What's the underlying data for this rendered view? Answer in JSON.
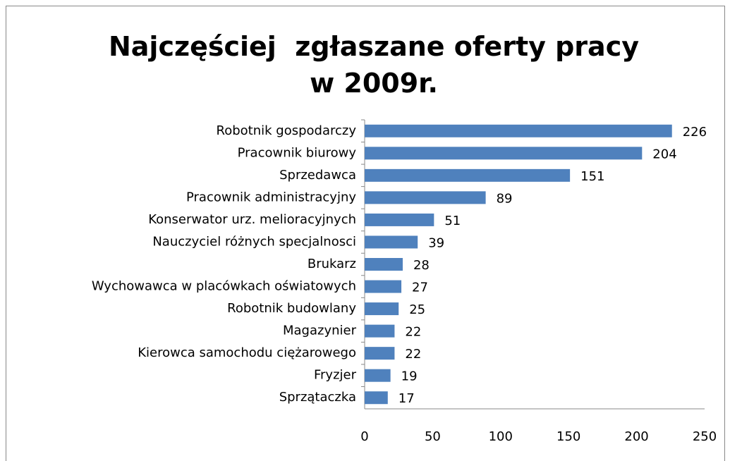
{
  "chart_data": {
    "type": "bar",
    "orientation": "horizontal",
    "title": "Najczęściej  zgłaszane oferty pracy w 2009r.",
    "categories": [
      "Robotnik gospodarczy",
      "Pracownik biurowy",
      "Sprzedawca",
      "Pracownik administracyjny",
      "Konserwator urz. melioracyjnych",
      "Nauczyciel różnych specjalnosci",
      "Brukarz",
      "Wychowawca w placówkach oświatowych",
      "Robotnik budowlany",
      "Magazynier",
      "Kierowca samochodu ciężarowego",
      "Fryzjer",
      "Sprzątaczka"
    ],
    "values": [
      226,
      204,
      151,
      89,
      51,
      39,
      28,
      27,
      25,
      22,
      22,
      19,
      17
    ],
    "color": "#4f81bd",
    "xlim": [
      0,
      250
    ],
    "xticks": [
      0,
      50,
      100,
      150,
      200,
      250
    ],
    "grid": false
  }
}
